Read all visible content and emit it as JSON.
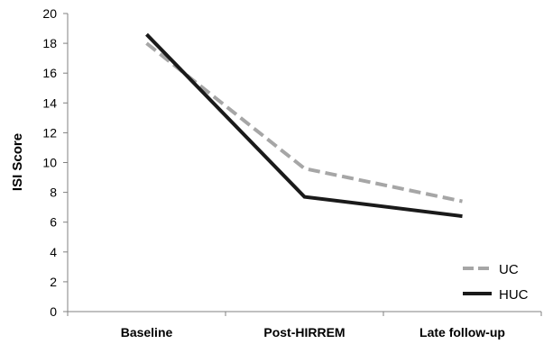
{
  "chart_data": {
    "type": "line",
    "title": "",
    "xlabel": "",
    "ylabel": "ISI Score",
    "categories": [
      "Baseline",
      "Post-HIRREM",
      "Late follow-up"
    ],
    "ylim": [
      0,
      20
    ],
    "yticks": [
      0,
      2,
      4,
      6,
      8,
      10,
      12,
      14,
      16,
      18,
      20
    ],
    "grid": false,
    "legend_position": "bottom-right",
    "series": [
      {
        "name": "UC",
        "values": [
          18.0,
          9.6,
          7.4
        ],
        "color": "#a6a6a6",
        "style": "dashed"
      },
      {
        "name": "HUC",
        "values": [
          18.6,
          7.7,
          6.4
        ],
        "color": "#1a1a1a",
        "style": "solid"
      }
    ]
  }
}
